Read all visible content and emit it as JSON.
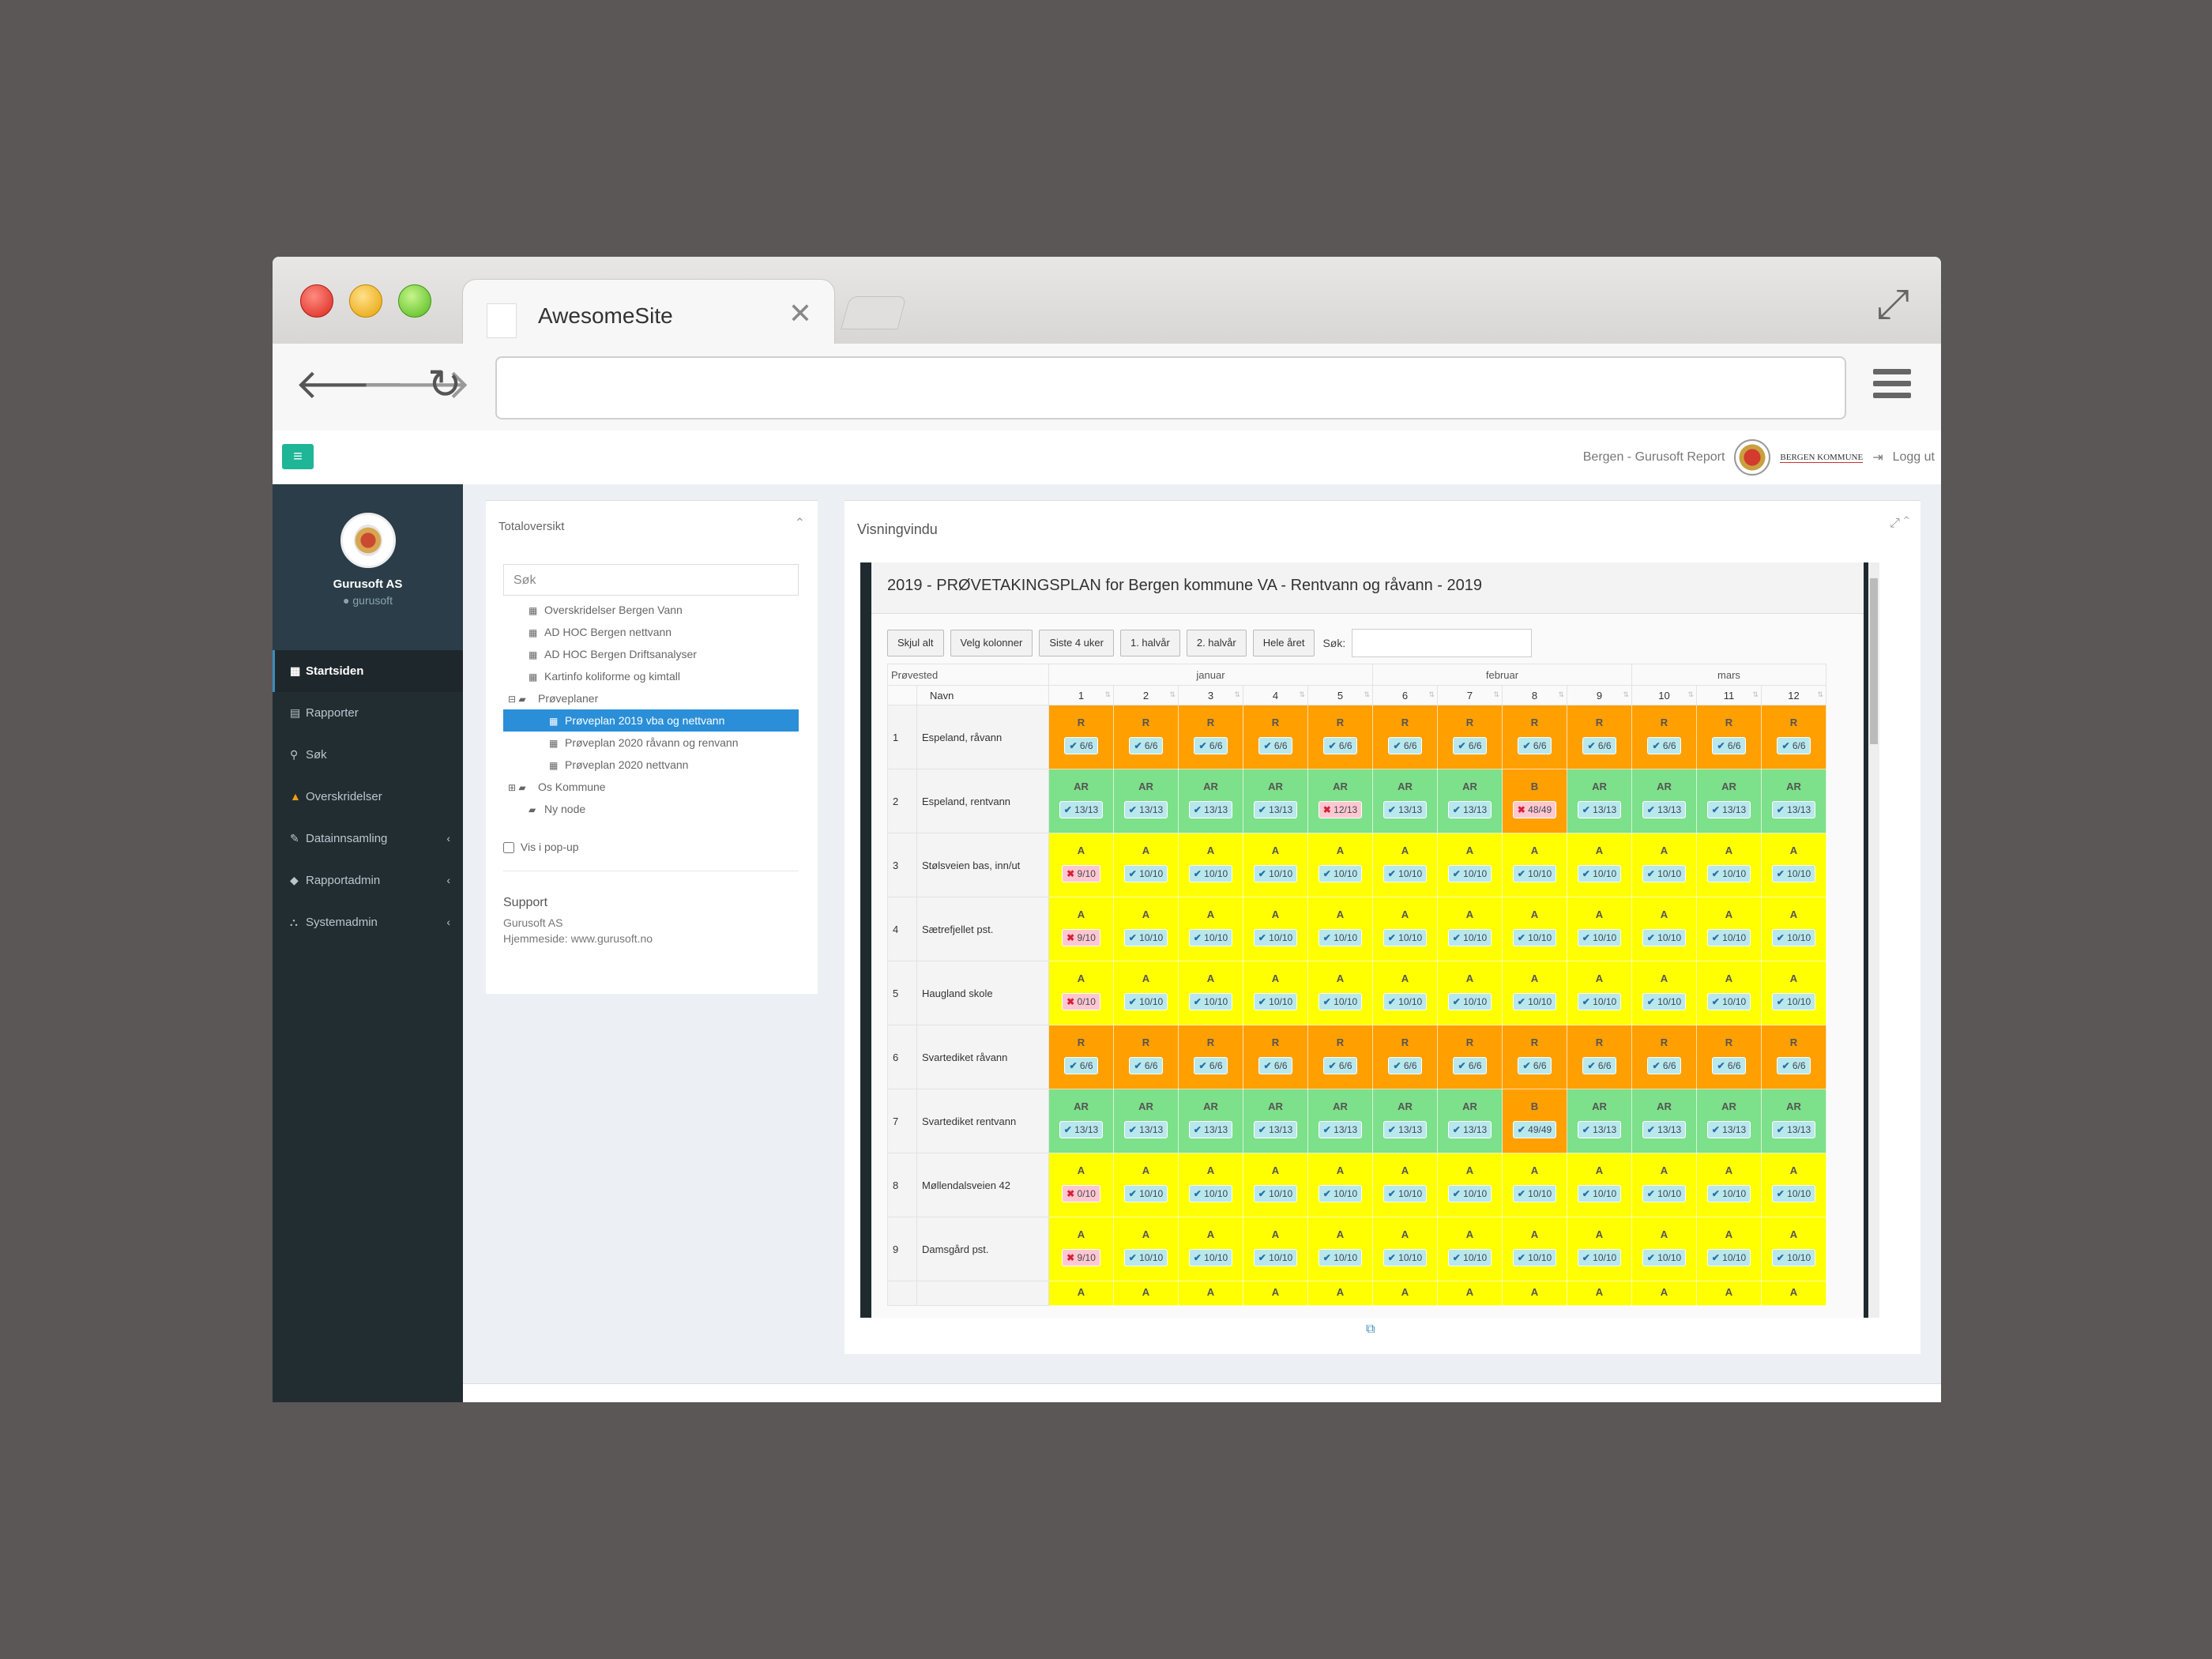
{
  "browser": {
    "tab_title": "AwesomeSite",
    "address": ""
  },
  "topbar": {
    "site_label": "Bergen - Gurusoft Report",
    "kommune": "BERGEN KOMMUNE",
    "logout": "Logg ut"
  },
  "sidebar": {
    "org": "Gurusoft AS",
    "user": "gurusoft",
    "items": [
      {
        "label": "Startsiden",
        "icon": "dashboard-icon",
        "glyph": "▦",
        "active": true,
        "chevron": false
      },
      {
        "label": "Rapporter",
        "icon": "table-icon",
        "glyph": "▤",
        "active": false,
        "chevron": false
      },
      {
        "label": "Søk",
        "icon": "search-icon",
        "glyph": "⚲",
        "active": false,
        "chevron": false
      },
      {
        "label": "Overskridelser",
        "icon": "warning-icon",
        "glyph": "▲",
        "active": false,
        "chevron": false
      },
      {
        "label": "Datainnsamling",
        "icon": "edit-icon",
        "glyph": "✎",
        "active": false,
        "chevron": true
      },
      {
        "label": "Rapportadmin",
        "icon": "tag-icon",
        "glyph": "◆",
        "active": false,
        "chevron": true
      },
      {
        "label": "Systemadmin",
        "icon": "sitemap-icon",
        "glyph": "⛬",
        "active": false,
        "chevron": true
      }
    ]
  },
  "left_panel": {
    "title": "Totaloversikt",
    "search_placeholder": "Søk",
    "tree": [
      {
        "label": "Overskridelser Bergen Vann",
        "indent": 1,
        "icon": "table-icon",
        "glyph": "▦",
        "selected": false
      },
      {
        "label": "AD HOC Bergen nettvann",
        "indent": 1,
        "icon": "table-icon",
        "glyph": "▦",
        "selected": false
      },
      {
        "label": "AD HOC Bergen Driftsanalyser",
        "indent": 1,
        "icon": "table-icon",
        "glyph": "▦",
        "selected": false
      },
      {
        "label": "Kartinfo koliforme og kimtall",
        "indent": 1,
        "icon": "table-icon",
        "glyph": "▦",
        "selected": false
      },
      {
        "label": "Prøveplaner",
        "indent": 0,
        "icon": "folder-open-icon",
        "glyph": "⊟ ▰",
        "selected": false
      },
      {
        "label": "Prøveplan 2019 vba og nettvann",
        "indent": 2,
        "icon": "table-icon",
        "glyph": "▦",
        "selected": true
      },
      {
        "label": "Prøveplan 2020 råvann og renvann",
        "indent": 2,
        "icon": "table-icon",
        "glyph": "▦",
        "selected": false
      },
      {
        "label": "Prøveplan 2020 nettvann",
        "indent": 2,
        "icon": "table-icon",
        "glyph": "▦",
        "selected": false
      },
      {
        "label": "Os Kommune",
        "indent": 0,
        "icon": "folder-icon",
        "glyph": "⊞ ▰",
        "selected": false
      },
      {
        "label": "Ny node",
        "indent": 1,
        "icon": "folder-icon",
        "glyph": "▰",
        "selected": false
      }
    ],
    "popup_label": "Vis i pop-up",
    "support": {
      "heading": "Support",
      "company": "Gurusoft AS",
      "homepage": "Hjemmeside: www.gurusoft.no"
    }
  },
  "right_panel": {
    "title": "Visningvindu",
    "report_title": "2019 - PRØVETAKINGSPLAN for Bergen kommune VA - Rentvann og råvann - 2019",
    "buttons": [
      "Skjul alt",
      "Velg kolonner",
      "Siste 4 uker",
      "1. halvår",
      "2. halvår",
      "Hele året"
    ],
    "search_label": "Søk:",
    "header_left": "Prøvested",
    "header_name": "Navn",
    "months": [
      {
        "label": "januar",
        "span": 5
      },
      {
        "label": "februar",
        "span": 4
      },
      {
        "label": "mars",
        "span": 3
      }
    ],
    "weeks": [
      "1",
      "2",
      "3",
      "4",
      "5",
      "6",
      "7",
      "8",
      "9",
      "10",
      "11",
      "12"
    ],
    "rows": [
      {
        "no": "1",
        "name": "Espeland, råvann",
        "type": "R",
        "cells": [
          [
            "R",
            "6/6",
            1
          ],
          [
            "R",
            "6/6",
            1
          ],
          [
            "R",
            "6/6",
            1
          ],
          [
            "R",
            "6/6",
            1
          ],
          [
            "R",
            "6/6",
            1
          ],
          [
            "R",
            "6/6",
            1
          ],
          [
            "R",
            "6/6",
            1
          ],
          [
            "R",
            "6/6",
            1
          ],
          [
            "R",
            "6/6",
            1
          ],
          [
            "R",
            "6/6",
            1
          ],
          [
            "R",
            "6/6",
            1
          ],
          [
            "R",
            "6/6",
            1
          ]
        ]
      },
      {
        "no": "2",
        "name": "Espeland, rentvann",
        "type": "AR",
        "cells": [
          [
            "AR",
            "13/13",
            1
          ],
          [
            "AR",
            "13/13",
            1
          ],
          [
            "AR",
            "13/13",
            1
          ],
          [
            "AR",
            "13/13",
            1
          ],
          [
            "AR",
            "12/13",
            0
          ],
          [
            "AR",
            "13/13",
            1
          ],
          [
            "AR",
            "13/13",
            1
          ],
          [
            "B",
            "48/49",
            0
          ],
          [
            "AR",
            "13/13",
            1
          ],
          [
            "AR",
            "13/13",
            1
          ],
          [
            "AR",
            "13/13",
            1
          ],
          [
            "AR",
            "13/13",
            1
          ]
        ]
      },
      {
        "no": "3",
        "name": "Stølsveien bas, inn/ut",
        "type": "A",
        "cells": [
          [
            "A",
            "9/10",
            0
          ],
          [
            "A",
            "10/10",
            1
          ],
          [
            "A",
            "10/10",
            1
          ],
          [
            "A",
            "10/10",
            1
          ],
          [
            "A",
            "10/10",
            1
          ],
          [
            "A",
            "10/10",
            1
          ],
          [
            "A",
            "10/10",
            1
          ],
          [
            "A",
            "10/10",
            1
          ],
          [
            "A",
            "10/10",
            1
          ],
          [
            "A",
            "10/10",
            1
          ],
          [
            "A",
            "10/10",
            1
          ],
          [
            "A",
            "10/10",
            1
          ]
        ]
      },
      {
        "no": "4",
        "name": "Sætrefjellet pst.",
        "type": "A",
        "cells": [
          [
            "A",
            "9/10",
            0
          ],
          [
            "A",
            "10/10",
            1
          ],
          [
            "A",
            "10/10",
            1
          ],
          [
            "A",
            "10/10",
            1
          ],
          [
            "A",
            "10/10",
            1
          ],
          [
            "A",
            "10/10",
            1
          ],
          [
            "A",
            "10/10",
            1
          ],
          [
            "A",
            "10/10",
            1
          ],
          [
            "A",
            "10/10",
            1
          ],
          [
            "A",
            "10/10",
            1
          ],
          [
            "A",
            "10/10",
            1
          ],
          [
            "A",
            "10/10",
            1
          ]
        ]
      },
      {
        "no": "5",
        "name": "Haugland skole",
        "type": "A",
        "cells": [
          [
            "A",
            "0/10",
            0
          ],
          [
            "A",
            "10/10",
            1
          ],
          [
            "A",
            "10/10",
            1
          ],
          [
            "A",
            "10/10",
            1
          ],
          [
            "A",
            "10/10",
            1
          ],
          [
            "A",
            "10/10",
            1
          ],
          [
            "A",
            "10/10",
            1
          ],
          [
            "A",
            "10/10",
            1
          ],
          [
            "A",
            "10/10",
            1
          ],
          [
            "A",
            "10/10",
            1
          ],
          [
            "A",
            "10/10",
            1
          ],
          [
            "A",
            "10/10",
            1
          ]
        ]
      },
      {
        "no": "6",
        "name": "Svartediket råvann",
        "type": "R",
        "cells": [
          [
            "R",
            "6/6",
            1
          ],
          [
            "R",
            "6/6",
            1
          ],
          [
            "R",
            "6/6",
            1
          ],
          [
            "R",
            "6/6",
            1
          ],
          [
            "R",
            "6/6",
            1
          ],
          [
            "R",
            "6/6",
            1
          ],
          [
            "R",
            "6/6",
            1
          ],
          [
            "R",
            "6/6",
            1
          ],
          [
            "R",
            "6/6",
            1
          ],
          [
            "R",
            "6/6",
            1
          ],
          [
            "R",
            "6/6",
            1
          ],
          [
            "R",
            "6/6",
            1
          ]
        ]
      },
      {
        "no": "7",
        "name": "Svartediket rentvann",
        "type": "AR",
        "cells": [
          [
            "AR",
            "13/13",
            1
          ],
          [
            "AR",
            "13/13",
            1
          ],
          [
            "AR",
            "13/13",
            1
          ],
          [
            "AR",
            "13/13",
            1
          ],
          [
            "AR",
            "13/13",
            1
          ],
          [
            "AR",
            "13/13",
            1
          ],
          [
            "AR",
            "13/13",
            1
          ],
          [
            "B",
            "49/49",
            1
          ],
          [
            "AR",
            "13/13",
            1
          ],
          [
            "AR",
            "13/13",
            1
          ],
          [
            "AR",
            "13/13",
            1
          ],
          [
            "AR",
            "13/13",
            1
          ]
        ]
      },
      {
        "no": "8",
        "name": "Møllendalsveien 42",
        "type": "A",
        "cells": [
          [
            "A",
            "0/10",
            0
          ],
          [
            "A",
            "10/10",
            1
          ],
          [
            "A",
            "10/10",
            1
          ],
          [
            "A",
            "10/10",
            1
          ],
          [
            "A",
            "10/10",
            1
          ],
          [
            "A",
            "10/10",
            1
          ],
          [
            "A",
            "10/10",
            1
          ],
          [
            "A",
            "10/10",
            1
          ],
          [
            "A",
            "10/10",
            1
          ],
          [
            "A",
            "10/10",
            1
          ],
          [
            "A",
            "10/10",
            1
          ],
          [
            "A",
            "10/10",
            1
          ]
        ]
      },
      {
        "no": "9",
        "name": "Damsgård pst.",
        "type": "A",
        "cells": [
          [
            "A",
            "9/10",
            0
          ],
          [
            "A",
            "10/10",
            1
          ],
          [
            "A",
            "10/10",
            1
          ],
          [
            "A",
            "10/10",
            1
          ],
          [
            "A",
            "10/10",
            1
          ],
          [
            "A",
            "10/10",
            1
          ],
          [
            "A",
            "10/10",
            1
          ],
          [
            "A",
            "10/10",
            1
          ],
          [
            "A",
            "10/10",
            1
          ],
          [
            "A",
            "10/10",
            1
          ],
          [
            "A",
            "10/10",
            1
          ],
          [
            "A",
            "10/10",
            1
          ]
        ]
      }
    ],
    "partial_row_code": "A"
  },
  "colors": {
    "R": "#ff9f00",
    "AR": "#7de08a",
    "A": "#ffff00",
    "B": "#ff9f00"
  }
}
